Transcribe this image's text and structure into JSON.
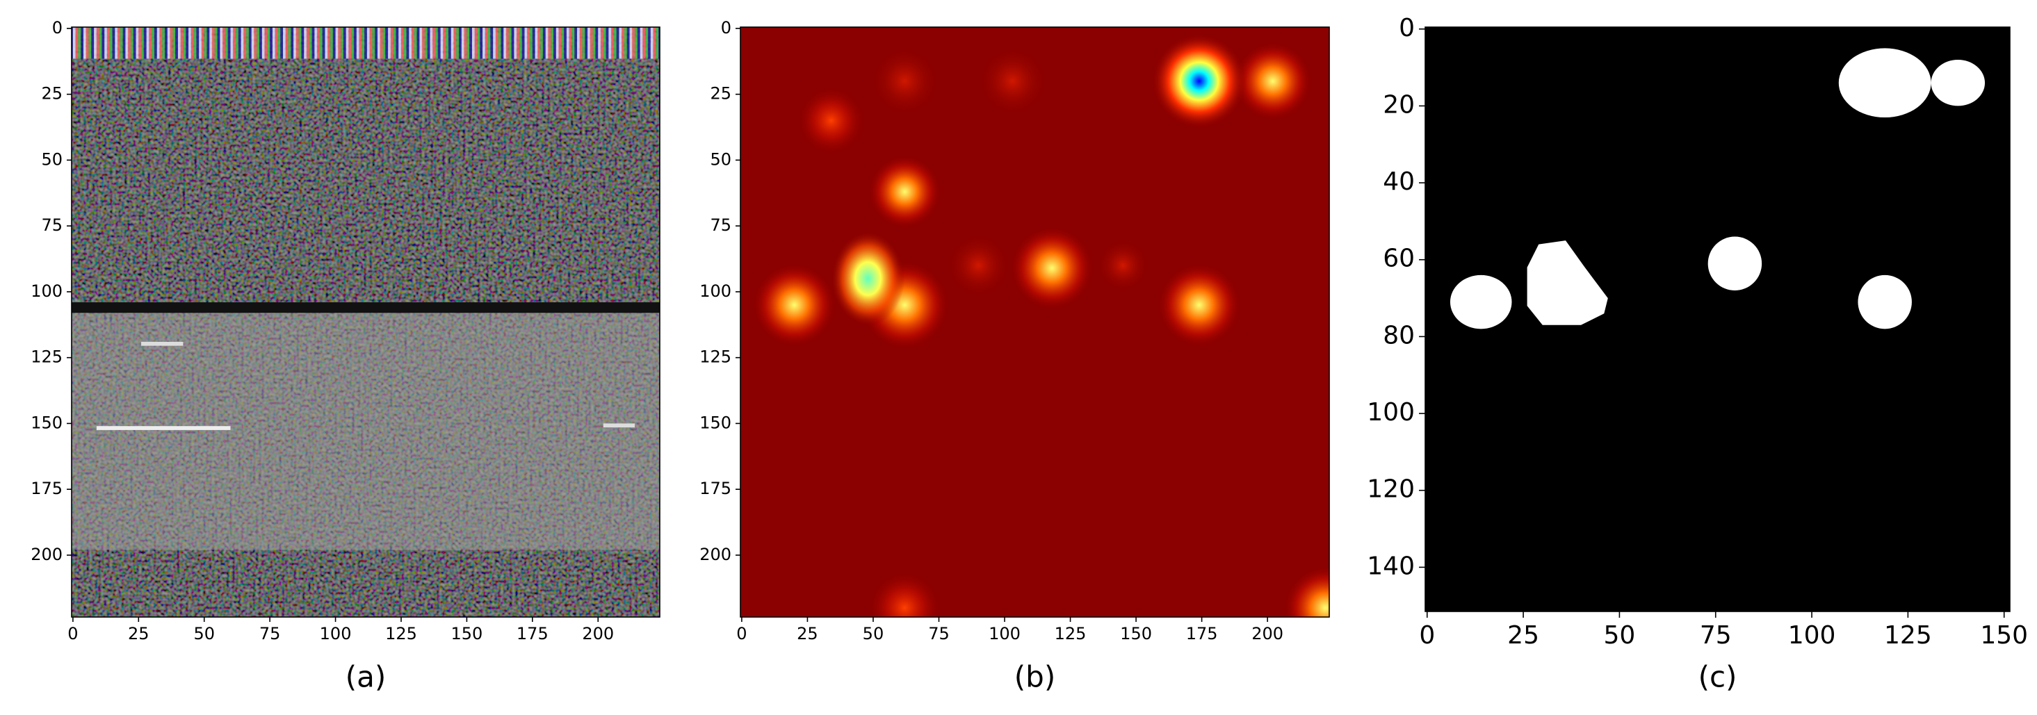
{
  "chart_data": [
    {
      "type": "image",
      "caption": "(a)",
      "xlim": [
        -0.5,
        223.5
      ],
      "ylim": [
        223.5,
        -0.5
      ],
      "xticks": [
        0,
        25,
        50,
        75,
        100,
        125,
        150,
        175,
        200
      ],
      "yticks": [
        0,
        25,
        50,
        75,
        100,
        125,
        150,
        175,
        200
      ]
    },
    {
      "type": "image",
      "caption": "(b)",
      "xlim": [
        -0.5,
        223.5
      ],
      "ylim": [
        223.5,
        -0.5
      ],
      "xticks": [
        0,
        25,
        50,
        75,
        100,
        125,
        150,
        175,
        200
      ],
      "yticks": [
        0,
        25,
        50,
        75,
        100,
        125,
        150,
        175,
        200
      ]
    },
    {
      "type": "image",
      "caption": "(c)",
      "xlim": [
        -0.5,
        151.5
      ],
      "ylim": [
        151.5,
        -0.5
      ],
      "xticks": [
        0,
        25,
        50,
        75,
        100,
        125,
        150
      ],
      "yticks": [
        0,
        20,
        40,
        60,
        80,
        100,
        120,
        140
      ]
    }
  ]
}
